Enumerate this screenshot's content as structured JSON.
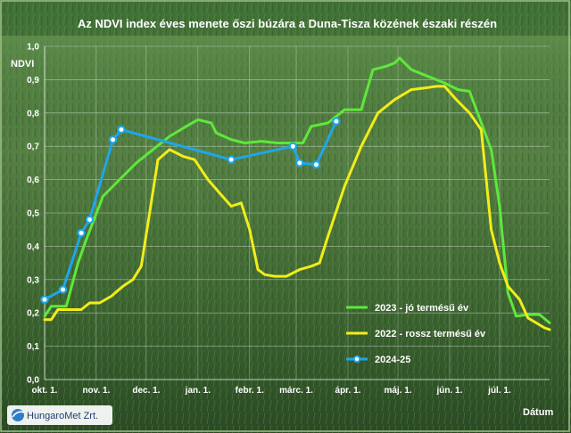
{
  "chart_data": {
    "type": "line",
    "title": "Az NDVI index éves menete őszi búzára a Duna-Tisza közének északi részén",
    "ylabel": "NDVI",
    "xlabel": "Dátum",
    "ylim": [
      0,
      1.0
    ],
    "y_ticks": [
      "0,0",
      "0,1",
      "0,2",
      "0,3",
      "0,4",
      "0,5",
      "0,6",
      "0,7",
      "0,8",
      "0,9",
      "1,0"
    ],
    "x_ticks": [
      {
        "label": "okt. 1.",
        "day": 0
      },
      {
        "label": "nov. 1.",
        "day": 31
      },
      {
        "label": "dec. 1.",
        "day": 61
      },
      {
        "label": "jan. 1.",
        "day": 92
      },
      {
        "label": "febr. 1.",
        "day": 123
      },
      {
        "label": "márc. 1.",
        "day": 151
      },
      {
        "label": "ápr. 1.",
        "day": 182
      },
      {
        "label": "máj. 1.",
        "day": 212
      },
      {
        "label": "jún. 1.",
        "day": 243
      },
      {
        "label": "júl. 1.",
        "day": 273
      }
    ],
    "x_range_days": [
      0,
      303
    ],
    "grid": true,
    "legend": "right",
    "series": [
      {
        "name": "2023 - jó termésű év",
        "color": "#5ee83a",
        "markers": false,
        "points": [
          [
            0,
            0.19
          ],
          [
            4,
            0.22
          ],
          [
            8,
            0.22
          ],
          [
            13,
            0.22
          ],
          [
            20,
            0.35
          ],
          [
            25,
            0.42
          ],
          [
            35,
            0.55
          ],
          [
            45,
            0.6
          ],
          [
            55,
            0.65
          ],
          [
            65,
            0.69
          ],
          [
            75,
            0.73
          ],
          [
            85,
            0.76
          ],
          [
            92,
            0.78
          ],
          [
            100,
            0.77
          ],
          [
            103,
            0.74
          ],
          [
            112,
            0.72
          ],
          [
            120,
            0.71
          ],
          [
            130,
            0.715
          ],
          [
            140,
            0.71
          ],
          [
            150,
            0.71
          ],
          [
            155,
            0.71
          ],
          [
            160,
            0.76
          ],
          [
            170,
            0.77
          ],
          [
            180,
            0.81
          ],
          [
            190,
            0.81
          ],
          [
            197,
            0.93
          ],
          [
            205,
            0.94
          ],
          [
            210,
            0.95
          ],
          [
            213,
            0.965
          ],
          [
            220,
            0.93
          ],
          [
            230,
            0.91
          ],
          [
            240,
            0.89
          ],
          [
            248,
            0.87
          ],
          [
            255,
            0.865
          ],
          [
            265,
            0.73
          ],
          [
            268,
            0.69
          ],
          [
            273,
            0.52
          ],
          [
            278,
            0.26
          ],
          [
            283,
            0.19
          ],
          [
            290,
            0.195
          ],
          [
            297,
            0.195
          ],
          [
            303,
            0.17
          ]
        ]
      },
      {
        "name": "2022 - rossz termésű év",
        "color": "#f2ed1a",
        "markers": false,
        "points": [
          [
            0,
            0.18
          ],
          [
            4,
            0.18
          ],
          [
            8,
            0.21
          ],
          [
            15,
            0.21
          ],
          [
            22,
            0.21
          ],
          [
            27,
            0.23
          ],
          [
            33,
            0.23
          ],
          [
            40,
            0.25
          ],
          [
            47,
            0.28
          ],
          [
            53,
            0.3
          ],
          [
            58,
            0.34
          ],
          [
            63,
            0.5
          ],
          [
            68,
            0.66
          ],
          [
            75,
            0.69
          ],
          [
            83,
            0.67
          ],
          [
            90,
            0.66
          ],
          [
            98,
            0.6
          ],
          [
            105,
            0.56
          ],
          [
            112,
            0.52
          ],
          [
            118,
            0.53
          ],
          [
            123,
            0.45
          ],
          [
            128,
            0.33
          ],
          [
            132,
            0.315
          ],
          [
            138,
            0.31
          ],
          [
            145,
            0.31
          ],
          [
            153,
            0.33
          ],
          [
            160,
            0.34
          ],
          [
            165,
            0.35
          ],
          [
            170,
            0.43
          ],
          [
            180,
            0.58
          ],
          [
            190,
            0.7
          ],
          [
            200,
            0.8
          ],
          [
            210,
            0.84
          ],
          [
            220,
            0.87
          ],
          [
            228,
            0.875
          ],
          [
            235,
            0.88
          ],
          [
            240,
            0.88
          ],
          [
            247,
            0.84
          ],
          [
            255,
            0.8
          ],
          [
            262,
            0.75
          ],
          [
            268,
            0.45
          ],
          [
            273,
            0.35
          ],
          [
            278,
            0.28
          ],
          [
            285,
            0.24
          ],
          [
            290,
            0.185
          ],
          [
            295,
            0.17
          ],
          [
            300,
            0.155
          ],
          [
            303,
            0.15
          ]
        ]
      },
      {
        "name": "2024-25",
        "color": "#1fa6e8",
        "markers": true,
        "points": [
          [
            0,
            0.24
          ],
          [
            11,
            0.27
          ],
          [
            22,
            0.44
          ],
          [
            27,
            0.48
          ],
          [
            41,
            0.72
          ],
          [
            46,
            0.75
          ],
          [
            112,
            0.66
          ],
          [
            149,
            0.7
          ],
          [
            153,
            0.65
          ],
          [
            163,
            0.645
          ],
          [
            175,
            0.775
          ]
        ]
      }
    ]
  },
  "logo": {
    "text": "HungaroMet Zrt."
  }
}
